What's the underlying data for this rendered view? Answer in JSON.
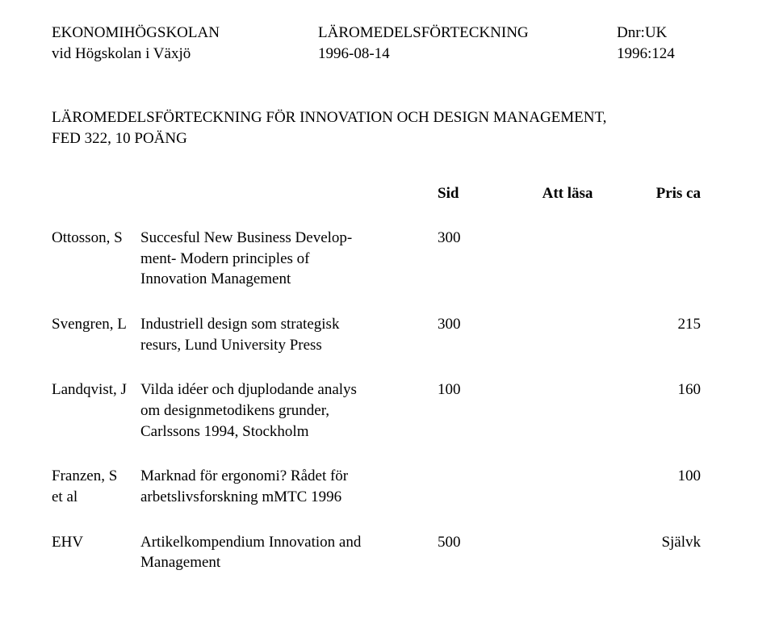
{
  "header": {
    "left_line1": "EKONOMIHÖGSKOLAN",
    "left_line2": "vid Högskolan i Växjö",
    "mid_line1": "LÄROMEDELSFÖRTECKNING",
    "mid_line2": "1996-08-14",
    "right_line1": "Dnr:UK",
    "right_line2": "1996:124"
  },
  "title": {
    "line1": "LÄROMEDELSFÖRTECKNING FÖR INNOVATION OCH DESIGN MANAGEMENT,",
    "line2": "FED 322, 10 POÄNG"
  },
  "colhead": {
    "sid": "Sid",
    "att": "Att läsa",
    "pris": "Pris ca"
  },
  "entries": [
    {
      "author_lines": [
        "Ottosson, S"
      ],
      "desc_lines": [
        "Succesful New Business Develop-",
        "ment- Modern principles of",
        "Innovation Management"
      ],
      "sid": "300",
      "att": "",
      "pris": ""
    },
    {
      "author_lines": [
        "Svengren, L"
      ],
      "desc_lines": [
        "Industriell design som strategisk",
        "resurs, Lund University Press"
      ],
      "sid": "300",
      "att": "",
      "pris": "215"
    },
    {
      "author_lines": [
        "Landqvist, J"
      ],
      "desc_lines": [
        "Vilda idéer och djuplodande analys",
        "om designmetodikens grunder,",
        "Carlssons 1994, Stockholm"
      ],
      "sid": "100",
      "att": "",
      "pris": "160"
    },
    {
      "author_lines": [
        "Franzen, S",
        "et al"
      ],
      "desc_lines": [
        "Marknad för ergonomi? Rådet för",
        "arbetslivsforskning mMTC 1996"
      ],
      "sid": "",
      "att": "",
      "pris": "100"
    },
    {
      "author_lines": [
        "EHV"
      ],
      "desc_lines": [
        "Artikelkompendium Innovation and",
        "Management"
      ],
      "sid": "500",
      "att": "",
      "pris": "Självk"
    }
  ]
}
